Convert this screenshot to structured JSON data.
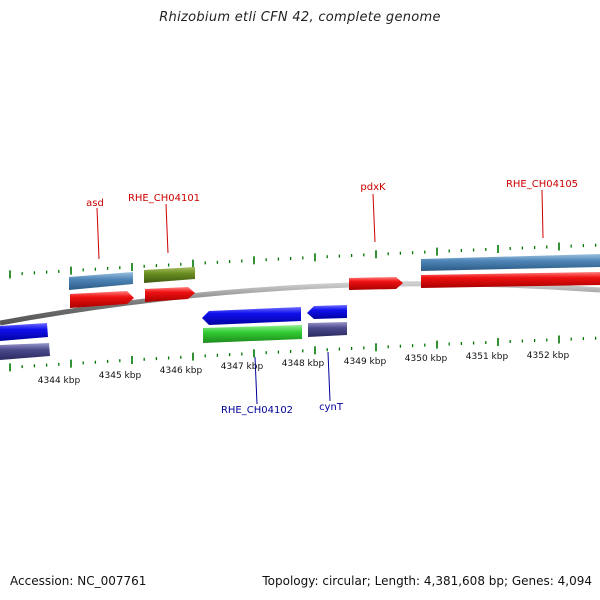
{
  "title": "Rhizobium etli CFN 42, complete genome",
  "footer": {
    "accession": "Accession: NC_007761",
    "topology": "Topology: circular; Length: 4,381,608 bp; Genes: 4,094"
  },
  "scale_labels": [
    "4344 kbp",
    "4345 kbp",
    "4346 kbp",
    "4347 kbp",
    "4348 kbp",
    "4349 kbp",
    "4350 kbp",
    "4351 kbp",
    "4352 kbp"
  ],
  "gene_labels_top": [
    "asd",
    "RHE_CH04101",
    "pdxK",
    "RHE_CH04105"
  ],
  "gene_labels_bottom": [
    "RHE_CH04102",
    "cynT"
  ],
  "colors": {
    "top_label": "#cc0000",
    "bottom_label": "#000099",
    "tick": "#007700",
    "backbone": "#888888",
    "cds_red": "#ee1111",
    "cds_blue": "#1111ee",
    "gene_steel": "#4f86b8",
    "gene_olive": "#6b8e23",
    "gene_green": "#33cc33",
    "gene_slate": "#4b4a8c"
  },
  "icons": [
    "forward-arrow-cds",
    "reverse-arrow-cds"
  ]
}
